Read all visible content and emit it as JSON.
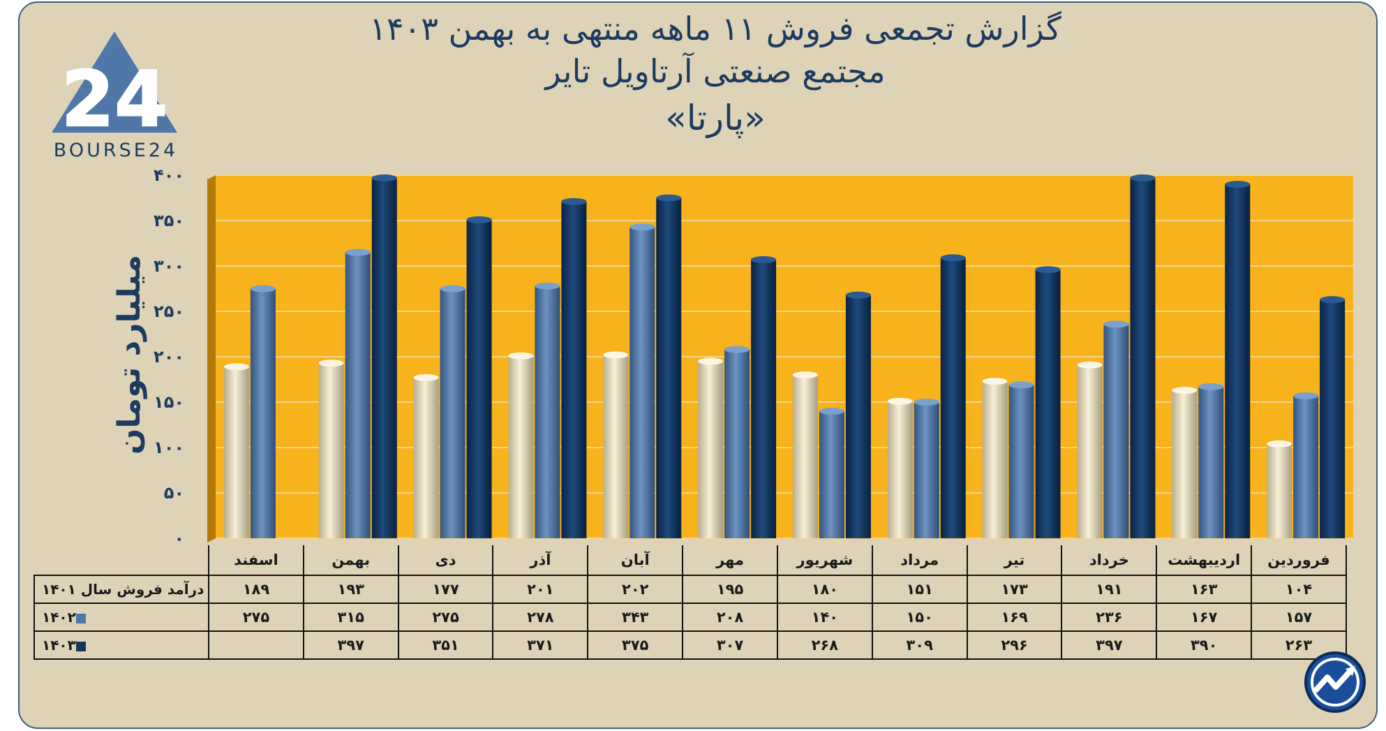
{
  "title_lines": [
    "گزارش تجمعی فروش ۱۱ ماهه منتهی به بهمن ۱۴۰۳",
    "مجتمع صنعتی آرتاویل تایر",
    "«پارتا»"
  ],
  "brand": {
    "name": "BOURSE24",
    "logo_number": "24"
  },
  "colors": {
    "series_1401": "#ebe2c2",
    "series_1402": "#4f78a8",
    "series_1403": "#13365e",
    "plot_bg": "#f7b21c",
    "frame_bg": "#ded3b6"
  },
  "chart_data": {
    "type": "bar",
    "ylabel": "میلیارد تومان",
    "ylim": [
      0,
      400
    ],
    "yticks": [
      0,
      50,
      100,
      150,
      200,
      250,
      300,
      350,
      400
    ],
    "ytick_labels": [
      "۰",
      "۵۰",
      "۱۰۰",
      "۱۵۰",
      "۲۰۰",
      "۲۵۰",
      "۳۰۰",
      "۳۵۰",
      "۴۰۰"
    ],
    "grid": true,
    "categories": [
      "فروردین",
      "اردیبهشت",
      "خرداد",
      "تیر",
      "مرداد",
      "شهریور",
      "مهر",
      "آبان",
      "آذر",
      "دی",
      "بهمن",
      "اسفند"
    ],
    "series": [
      {
        "name": "درآمد فروش سال ۱۴۰۱",
        "values": [
          104,
          163,
          191,
          173,
          151,
          180,
          195,
          202,
          201,
          177,
          193,
          189
        ],
        "labels": [
          "۱۰۴",
          "۱۶۳",
          "۱۹۱",
          "۱۷۳",
          "۱۵۱",
          "۱۸۰",
          "۱۹۵",
          "۲۰۲",
          "۲۰۱",
          "۱۷۷",
          "۱۹۳",
          "۱۸۹"
        ]
      },
      {
        "name": "۱۴۰۲",
        "values": [
          157,
          167,
          236,
          169,
          150,
          140,
          208,
          343,
          278,
          275,
          315,
          275
        ],
        "labels": [
          "۱۵۷",
          "۱۶۷",
          "۲۳۶",
          "۱۶۹",
          "۱۵۰",
          "۱۴۰",
          "۲۰۸",
          "۳۴۳",
          "۲۷۸",
          "۲۷۵",
          "۳۱۵",
          "۲۷۵"
        ]
      },
      {
        "name": "۱۴۰۳",
        "values": [
          263,
          390,
          397,
          296,
          309,
          268,
          307,
          375,
          371,
          351,
          397,
          null
        ],
        "labels": [
          "۲۶۳",
          "۳۹۰",
          "۳۹۷",
          "۲۹۶",
          "۳۰۹",
          "۲۶۸",
          "۳۰۷",
          "۳۷۵",
          "۳۷۱",
          "۳۵۱",
          "۳۹۷",
          ""
        ]
      }
    ]
  }
}
